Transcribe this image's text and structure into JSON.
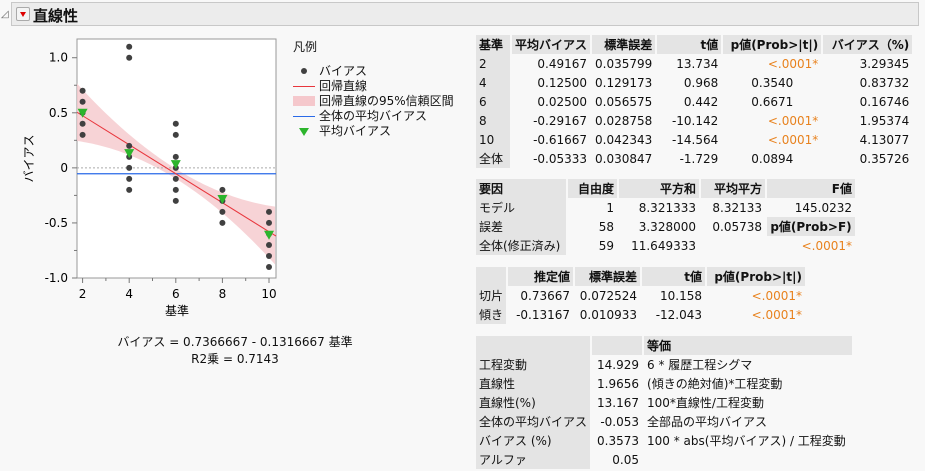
{
  "report": {
    "title": "直線性"
  },
  "legend": {
    "title": "凡例",
    "items": [
      "バイアス",
      "回帰直線",
      "回帰直線の95%信頼区間",
      "全体の平均バイアス",
      "平均バイアス"
    ]
  },
  "equation": {
    "line1": "バイアス = 0.7366667 - 0.1316667 基準",
    "line2": "R2乗 = 0.7143"
  },
  "colors": {
    "points": "#404040",
    "regression": "#e8363d",
    "band": "#f5c8cc",
    "mean_line": "#2a6ae8",
    "mean_marker": "#2db52d",
    "significant": "#e8821e"
  },
  "chart_data": {
    "type": "scatter",
    "xlabel": "基準",
    "ylabel": "バイアス",
    "xlim": [
      1.76,
      10.3
    ],
    "ylim": [
      -1.0,
      1.17
    ],
    "xticks": [
      "2",
      "4",
      "6",
      "8",
      "10"
    ],
    "yticks": [
      "-1.0",
      "-0.5",
      "0",
      "0.5",
      "1.0"
    ],
    "points": [
      {
        "x": 2,
        "y": [
          0.7,
          0.6,
          0.5,
          0.4,
          0.3
        ]
      },
      {
        "x": 4,
        "y": [
          1.1,
          1.0,
          0.2,
          0.1,
          0,
          -0.1,
          -0.2
        ]
      },
      {
        "x": 6,
        "y": [
          0.4,
          0.3,
          0.1,
          0,
          -0.1,
          -0.2,
          -0.3
        ]
      },
      {
        "x": 8,
        "y": [
          -0.2,
          -0.3,
          -0.4,
          -0.5
        ]
      },
      {
        "x": 10,
        "y": [
          -0.4,
          -0.5,
          -0.6,
          -0.7,
          -0.8,
          -0.9
        ]
      }
    ],
    "mean_bias": [
      {
        "x": 2,
        "y": 0.49167
      },
      {
        "x": 4,
        "y": 0.125
      },
      {
        "x": 6,
        "y": 0.025
      },
      {
        "x": 8,
        "y": -0.29167
      },
      {
        "x": 10,
        "y": -0.61667
      }
    ],
    "regression": {
      "intercept": 0.7366667,
      "slope": -0.1316667
    },
    "overall_mean_bias": -0.05333,
    "zero_reference_line": 0
  },
  "bias_table": {
    "headers": [
      "基準",
      "平均バイアス",
      "標準誤差",
      "t値",
      "p値(Prob>|t|)",
      "バイアス（%)"
    ],
    "rows": [
      [
        "2",
        "0.49167",
        "0.035799",
        "13.734",
        "<.0001*",
        "3.29345"
      ],
      [
        "4",
        "0.12500",
        "0.129173",
        "0.968",
        "0.3540",
        "0.83732"
      ],
      [
        "6",
        "0.02500",
        "0.056575",
        "0.442",
        "0.6671",
        "0.16746"
      ],
      [
        "8",
        "-0.29167",
        "0.028758",
        "-10.142",
        "<.0001*",
        "1.95374"
      ],
      [
        "10",
        "-0.61667",
        "0.042343",
        "-14.564",
        "<.0001*",
        "4.13077"
      ],
      [
        "全体",
        "-0.05333",
        "0.030847",
        "-1.729",
        "0.0894",
        "0.35726"
      ]
    ]
  },
  "anova_table": {
    "headers": [
      "要因",
      "自由度",
      "平方和",
      "平均平方",
      "F値"
    ],
    "rows": [
      [
        "モデル",
        "1",
        "8.321333",
        "8.32133",
        "145.0232"
      ],
      [
        "誤差",
        "58",
        "3.328000",
        "0.05738",
        "p値(Prob>F)"
      ],
      [
        "全体(修正済み)",
        "59",
        "11.649333",
        "",
        "<.0001*"
      ]
    ]
  },
  "param_table": {
    "headers": [
      "",
      "推定値",
      "標準誤差",
      "t値",
      "p値(Prob>|t|)"
    ],
    "rows": [
      [
        "切片",
        "0.73667",
        "0.072524",
        "10.158",
        "<.0001*"
      ],
      [
        "傾き",
        "-0.13167",
        "0.010933",
        "-12.043",
        "<.0001*"
      ]
    ]
  },
  "summary_table": {
    "headers": [
      "",
      "",
      "等価"
    ],
    "rows": [
      [
        "工程変動",
        "14.929",
        "6 * 履歴工程シグマ"
      ],
      [
        "直線性",
        "1.9656",
        "(傾きの絶対値)*工程変動"
      ],
      [
        "直線性(%)",
        "13.167",
        "100*直線性/工程変動"
      ],
      [
        "全体の平均バイアス",
        "-0.053",
        "全部品の平均バイアス"
      ],
      [
        "バイアス (%)",
        "0.3573",
        "100 * abs(平均バイアス) / 工程変動"
      ],
      [
        "アルファ",
        "0.05",
        ""
      ]
    ]
  }
}
